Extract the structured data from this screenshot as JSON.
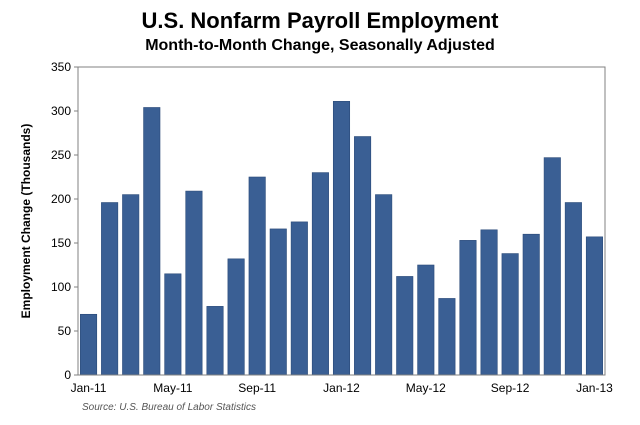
{
  "chart_data": {
    "type": "bar",
    "title": "U.S. Nonfarm Payroll Employment",
    "subtitle": "Month-to-Month Change, Seasonally Adjusted",
    "xlabel": "",
    "ylabel": "Employment Change (Thousands)",
    "ylim": [
      0,
      350
    ],
    "yticks": [
      0,
      50,
      100,
      150,
      200,
      250,
      300,
      350
    ],
    "categories": [
      "Jan-11",
      "Feb-11",
      "Mar-11",
      "Apr-11",
      "May-11",
      "Jun-11",
      "Jul-11",
      "Aug-11",
      "Sep-11",
      "Oct-11",
      "Nov-11",
      "Dec-11",
      "Jan-12",
      "Feb-12",
      "Mar-12",
      "Apr-12",
      "May-12",
      "Jun-12",
      "Jul-12",
      "Aug-12",
      "Sep-12",
      "Oct-12",
      "Nov-12",
      "Dec-12",
      "Jan-13"
    ],
    "values": [
      69,
      196,
      205,
      304,
      115,
      209,
      78,
      132,
      225,
      166,
      174,
      230,
      311,
      271,
      205,
      112,
      125,
      87,
      153,
      165,
      138,
      160,
      247,
      196,
      157
    ],
    "xtick_labels": [
      {
        "index": 0,
        "label": "Jan-11"
      },
      {
        "index": 4,
        "label": "May-11"
      },
      {
        "index": 8,
        "label": "Sep-11"
      },
      {
        "index": 12,
        "label": "Jan-12"
      },
      {
        "index": 16,
        "label": "May-12"
      },
      {
        "index": 20,
        "label": "Sep-12"
      },
      {
        "index": 24,
        "label": "Jan-13"
      }
    ],
    "bar_color": "#3a5f94",
    "source": "Source: U.S. Bureau of Labor Statistics"
  }
}
